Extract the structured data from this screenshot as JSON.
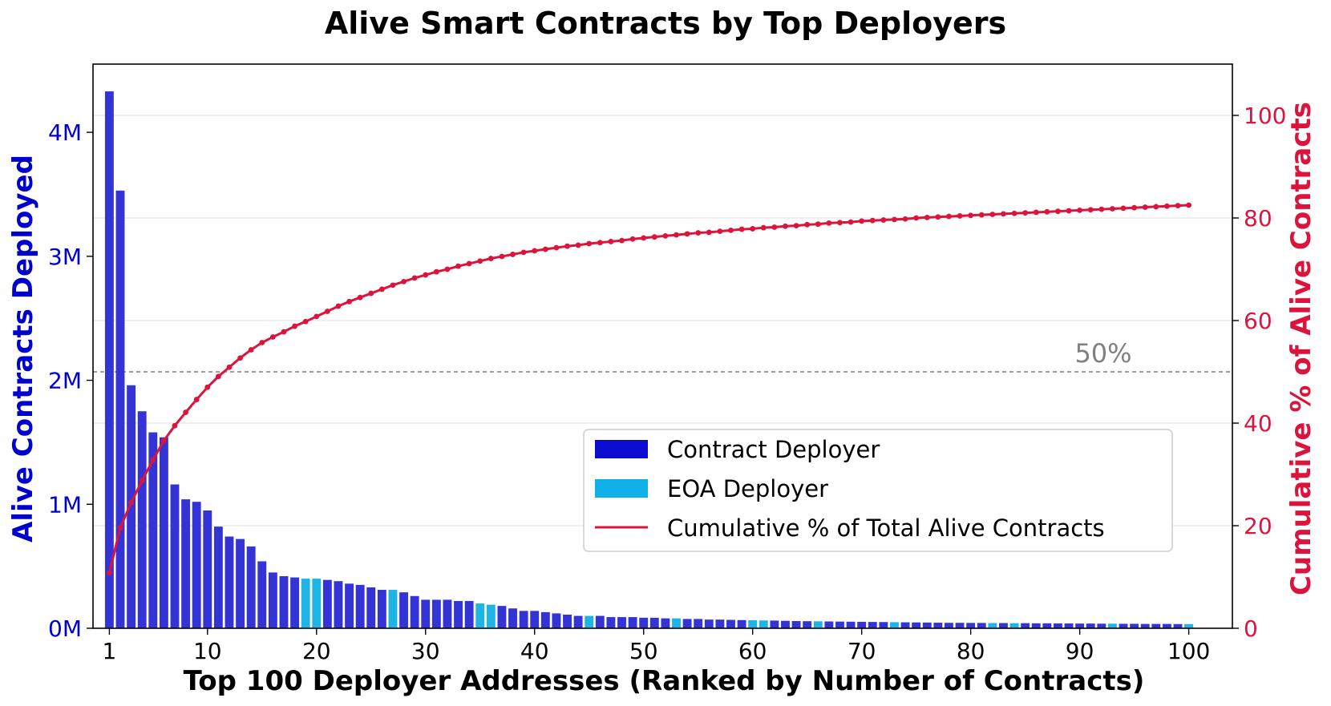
{
  "chart_data": {
    "type": "bar",
    "title": "Alive Smart Contracts by Top Deployers",
    "xlabel": "Top 100 Deployer Addresses (Ranked by Number of Contracts)",
    "ylabel": "Alive Contracts Deployed",
    "ylabel_right": "Cumulative % of Alive Contracts",
    "x_ticks": [
      "1",
      "10",
      "20",
      "30",
      "40",
      "50",
      "60",
      "70",
      "80",
      "90",
      "100"
    ],
    "y_ticks": [
      "0M",
      "1M",
      "2M",
      "3M",
      "4M"
    ],
    "y_right_ticks": [
      "0",
      "20",
      "40",
      "60",
      "80",
      "100"
    ],
    "xlim": [
      -0.5,
      104
    ],
    "ylim": [
      0,
      4.55
    ],
    "ylim_right": [
      0,
      110
    ],
    "units": "millions of contracts",
    "ranks": [
      1,
      2,
      3,
      4,
      5,
      6,
      7,
      8,
      9,
      10,
      11,
      12,
      13,
      14,
      15,
      16,
      17,
      18,
      19,
      20,
      21,
      22,
      23,
      24,
      25,
      26,
      27,
      28,
      29,
      30,
      31,
      32,
      33,
      34,
      35,
      36,
      37,
      38,
      39,
      40,
      41,
      42,
      43,
      44,
      45,
      46,
      47,
      48,
      49,
      50,
      51,
      52,
      53,
      54,
      55,
      56,
      57,
      58,
      59,
      60,
      61,
      62,
      63,
      64,
      65,
      66,
      67,
      68,
      69,
      70,
      71,
      72,
      73,
      74,
      75,
      76,
      77,
      78,
      79,
      80,
      81,
      82,
      83,
      84,
      85,
      86,
      87,
      88,
      89,
      90,
      91,
      92,
      93,
      94,
      95,
      96,
      97,
      98,
      99,
      100
    ],
    "values": [
      4.33,
      3.53,
      1.96,
      1.75,
      1.58,
      1.54,
      1.16,
      1.04,
      1.02,
      0.95,
      0.82,
      0.74,
      0.72,
      0.66,
      0.54,
      0.45,
      0.42,
      0.41,
      0.4,
      0.4,
      0.39,
      0.38,
      0.36,
      0.35,
      0.33,
      0.31,
      0.31,
      0.29,
      0.26,
      0.23,
      0.23,
      0.23,
      0.22,
      0.22,
      0.2,
      0.19,
      0.18,
      0.16,
      0.14,
      0.14,
      0.13,
      0.12,
      0.11,
      0.1,
      0.1,
      0.1,
      0.09,
      0.09,
      0.09,
      0.085,
      0.085,
      0.08,
      0.08,
      0.075,
      0.075,
      0.07,
      0.07,
      0.068,
      0.066,
      0.065,
      0.063,
      0.062,
      0.06,
      0.058,
      0.057,
      0.056,
      0.055,
      0.054,
      0.053,
      0.052,
      0.051,
      0.05,
      0.049,
      0.048,
      0.047,
      0.046,
      0.045,
      0.044,
      0.044,
      0.043,
      0.043,
      0.042,
      0.042,
      0.041,
      0.041,
      0.04,
      0.04,
      0.039,
      0.039,
      0.038,
      0.038,
      0.037,
      0.037,
      0.036,
      0.036,
      0.035,
      0.035,
      0.035,
      0.034,
      0.034
    ],
    "deployer_types": [
      "C",
      "C",
      "C",
      "C",
      "C",
      "C",
      "C",
      "C",
      "C",
      "C",
      "C",
      "C",
      "C",
      "C",
      "C",
      "C",
      "C",
      "C",
      "E",
      "E",
      "C",
      "C",
      "C",
      "C",
      "C",
      "C",
      "E",
      "C",
      "C",
      "C",
      "C",
      "C",
      "C",
      "C",
      "E",
      "E",
      "C",
      "C",
      "C",
      "C",
      "C",
      "C",
      "C",
      "C",
      "E",
      "C",
      "C",
      "C",
      "C",
      "C",
      "C",
      "C",
      "E",
      "C",
      "C",
      "C",
      "C",
      "C",
      "C",
      "E",
      "E",
      "C",
      "C",
      "C",
      "C",
      "E",
      "C",
      "C",
      "C",
      "C",
      "C",
      "C",
      "E",
      "C",
      "C",
      "C",
      "C",
      "C",
      "C",
      "C",
      "C",
      "E",
      "C",
      "E",
      "C",
      "C",
      "C",
      "C",
      "C",
      "C",
      "C",
      "C",
      "E",
      "C",
      "C",
      "C",
      "C",
      "C",
      "C",
      "E"
    ],
    "cumulative_percent": [
      10.8,
      19.6,
      24.5,
      28.8,
      32.8,
      36.6,
      39.5,
      42.1,
      44.6,
      47.0,
      49.1,
      50.9,
      52.7,
      54.3,
      55.7,
      56.8,
      57.8,
      58.9,
      59.8,
      60.8,
      61.8,
      62.8,
      63.7,
      64.5,
      65.3,
      66.1,
      66.9,
      67.6,
      68.3,
      68.9,
      69.5,
      70.0,
      70.6,
      71.1,
      71.6,
      72.1,
      72.5,
      72.9,
      73.3,
      73.6,
      73.9,
      74.2,
      74.5,
      74.7,
      75.0,
      75.2,
      75.4,
      75.6,
      75.9,
      76.1,
      76.3,
      76.5,
      76.7,
      76.9,
      77.1,
      77.2,
      77.4,
      77.6,
      77.8,
      77.9,
      78.1,
      78.2,
      78.4,
      78.5,
      78.7,
      78.8,
      79.0,
      79.1,
      79.2,
      79.4,
      79.5,
      79.6,
      79.7,
      79.8,
      80.0,
      80.1,
      80.2,
      80.3,
      80.4,
      80.5,
      80.6,
      80.7,
      80.8,
      80.9,
      81.0,
      81.1,
      81.2,
      81.3,
      81.4,
      81.5,
      81.6,
      81.7,
      81.8,
      81.9,
      82.0,
      82.1,
      82.2,
      82.3,
      82.4,
      82.5
    ],
    "reference_line": {
      "value": 50,
      "label": "50%"
    },
    "legend": {
      "position": "center-right",
      "entries": [
        {
          "label": "Contract Deployer",
          "kind": "bar"
        },
        {
          "label": "EOA Deployer",
          "kind": "bar"
        },
        {
          "label": "Cumulative % of Total Alive Contracts",
          "kind": "line"
        }
      ]
    },
    "colors": {
      "contract": "#3434d6",
      "eoa": "#1fb4e6",
      "legend_contract": "#0a0ad0",
      "legend_eoa": "#10b0e8",
      "cumulative": "#dc143c",
      "left_axis": "#0000cd",
      "right_axis": "#dc143c",
      "reference": "#808080",
      "grid": "#e6e6e6"
    }
  }
}
